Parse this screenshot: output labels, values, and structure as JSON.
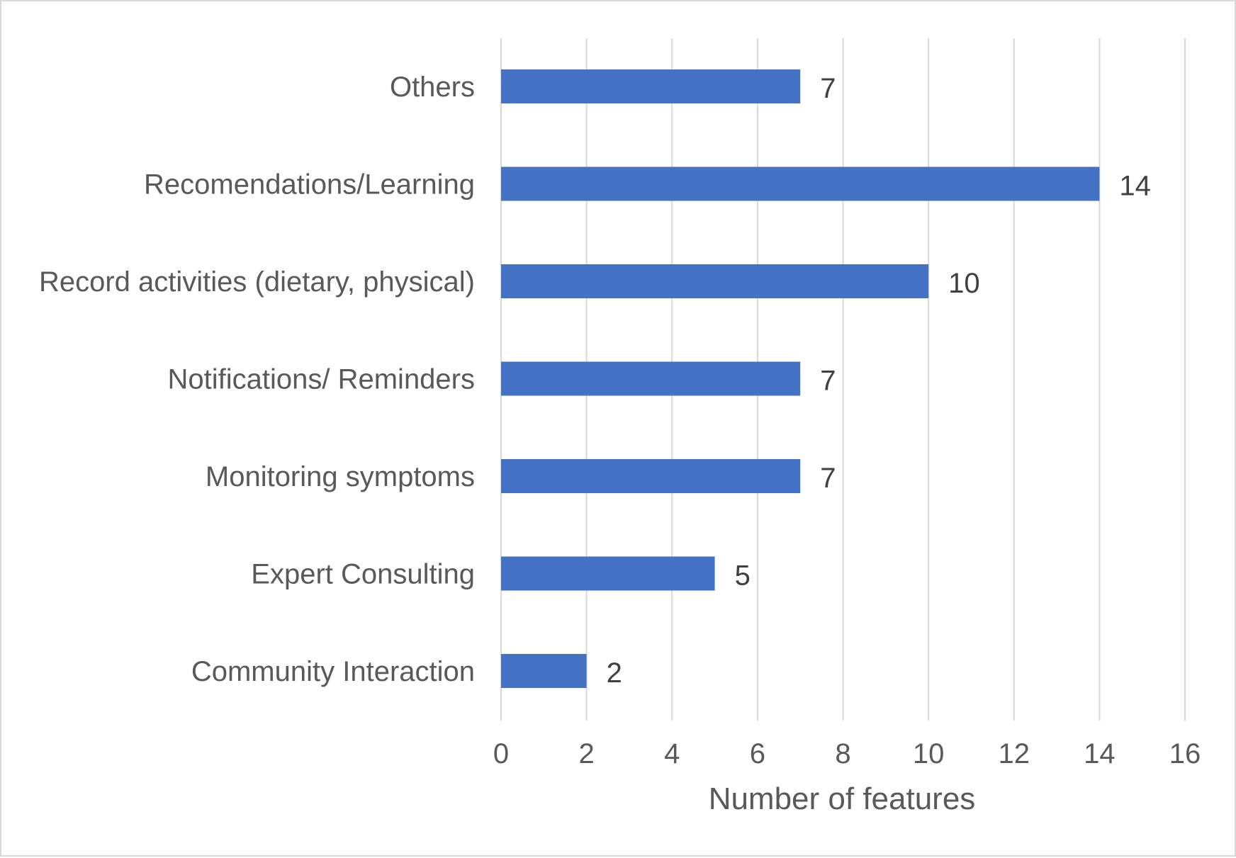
{
  "chart_data": {
    "type": "bar",
    "orientation": "horizontal",
    "categories": [
      "Others",
      "Recomendations/Learning",
      "Record activities (dietary, physical)",
      "Notifications/ Reminders",
      "Monitoring symptoms",
      "Expert Consulting",
      "Community Interaction"
    ],
    "values": [
      7,
      14,
      10,
      7,
      7,
      5,
      2
    ],
    "xlabel": "Number of features",
    "ylabel": "",
    "xlim": [
      0,
      16
    ],
    "xticks": [
      "0",
      "2",
      "4",
      "6",
      "8",
      "10",
      "12",
      "14",
      "16"
    ],
    "grid": true,
    "legend": "none",
    "data_labels": true,
    "bar_color": "#4472c4",
    "grid_color": "#d9d9d9",
    "label_color": "#595959"
  }
}
